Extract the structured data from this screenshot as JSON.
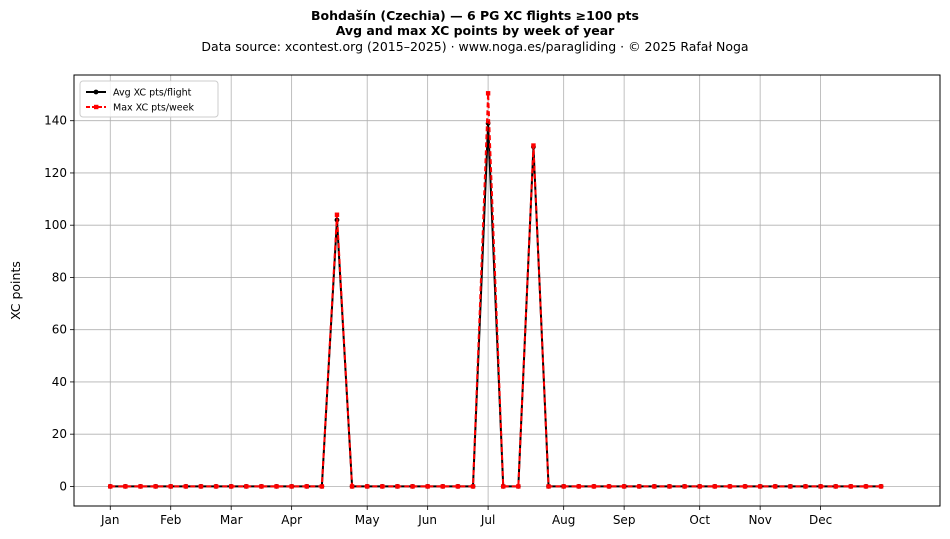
{
  "chart_data": {
    "type": "line",
    "title": "Bohdašín (Czechia)  —  6 PG XC flights ≥100 pts",
    "title2": "Avg and max XC points by week of year",
    "subtitle": "Data source: xcontest.org (2015–2025)  ·  www.noga.es/paragliding  ·  © 2025 Rafał Noga",
    "xlabel": "",
    "ylabel": "XC points",
    "xlim": [
      -2.4,
      54.9
    ],
    "ylim": [
      -7.5,
      157.5
    ],
    "yticks": [
      0,
      20,
      40,
      60,
      80,
      100,
      120,
      140
    ],
    "month_ticks": [
      {
        "label": "Jan",
        "week": 0
      },
      {
        "label": "Feb",
        "week": 4
      },
      {
        "label": "Mar",
        "week": 8
      },
      {
        "label": "Apr",
        "week": 12
      },
      {
        "label": "May",
        "week": 17
      },
      {
        "label": "Jun",
        "week": 21
      },
      {
        "label": "Jul",
        "week": 25
      },
      {
        "label": "Aug",
        "week": 30
      },
      {
        "label": "Sep",
        "week": 34
      },
      {
        "label": "Oct",
        "week": 39
      },
      {
        "label": "Nov",
        "week": 43
      },
      {
        "label": "Dec",
        "week": 47
      }
    ],
    "grid": true,
    "legend_position": "top-left",
    "series": [
      {
        "name": "Avg XC pts/flight",
        "color": "#000000",
        "style": "solid",
        "values": [
          0,
          0,
          0,
          0,
          0,
          0,
          0,
          0,
          0,
          0,
          0,
          0,
          0,
          0,
          0,
          102,
          0,
          0,
          0,
          0,
          0,
          0,
          0,
          0,
          0,
          139,
          0,
          0,
          130,
          0,
          0,
          0,
          0,
          0,
          0,
          0,
          0,
          0,
          0,
          0,
          0,
          0,
          0,
          0,
          0,
          0,
          0,
          0,
          0,
          0,
          0,
          0
        ]
      },
      {
        "name": "Max XC pts/week",
        "color": "#ff0000",
        "style": "dashed",
        "values": [
          0,
          0,
          0,
          0,
          0,
          0,
          0,
          0,
          0,
          0,
          0,
          0,
          0,
          0,
          0,
          104,
          0,
          0,
          0,
          0,
          0,
          0,
          0,
          0,
          0,
          150.5,
          0,
          0,
          130.5,
          0,
          0,
          0,
          0,
          0,
          0,
          0,
          0,
          0,
          0,
          0,
          0,
          0,
          0,
          0,
          0,
          0,
          0,
          0,
          0,
          0,
          0,
          0
        ]
      }
    ]
  }
}
